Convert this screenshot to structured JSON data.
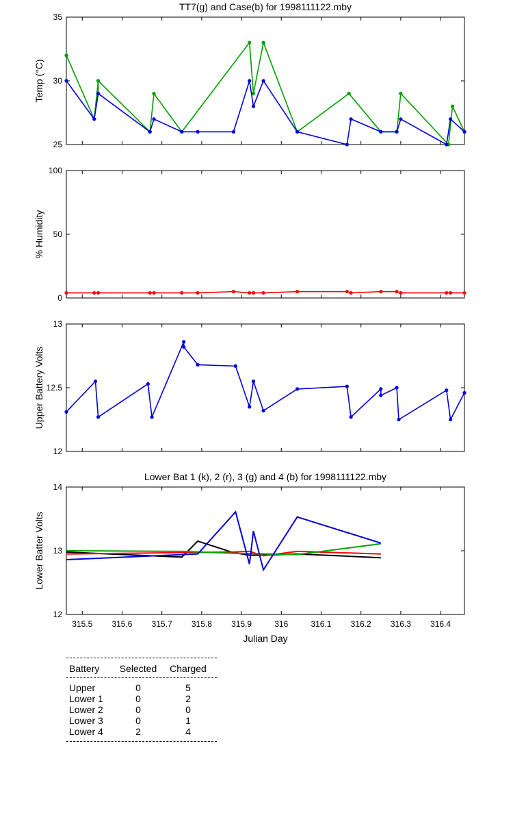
{
  "chart_data": [
    {
      "type": "line",
      "title": "TT7(g) and Case(b) for 1998111122.mby",
      "ylabel": "Temp  (°C)",
      "xlim": [
        315.46,
        316.46
      ],
      "ylim": [
        25,
        35
      ],
      "yticks": [
        25,
        30,
        35
      ],
      "series": [
        {
          "color": "#00a000",
          "x": [
            315.46,
            315.53,
            315.54,
            315.54,
            315.53,
            315.54,
            315.67,
            315.68,
            315.75,
            315.92,
            315.93,
            315.955,
            316.04,
            316.17,
            316.25,
            316.29,
            316.3,
            316.42,
            316.43,
            316.46
          ],
          "y": [
            32,
            27,
            30,
            29,
            27,
            30,
            26,
            29,
            26,
            33,
            29,
            33,
            26,
            29,
            26,
            26,
            29,
            25,
            28,
            26
          ]
        },
        {
          "color": "#0000e0",
          "x": [
            315.46,
            315.53,
            315.54,
            315.67,
            315.68,
            315.75,
            315.79,
            315.88,
            315.92,
            315.93,
            315.955,
            316.04,
            316.165,
            316.175,
            316.25,
            316.29,
            316.3,
            316.415,
            316.425,
            316.46
          ],
          "y": [
            30,
            27,
            29,
            26,
            27,
            26,
            26,
            26,
            30,
            28,
            30,
            26,
            25,
            27,
            26,
            26,
            27,
            25,
            27,
            26
          ]
        }
      ]
    },
    {
      "type": "line",
      "title": "",
      "ylabel": "% Humidity",
      "xlim": [
        315.46,
        316.46
      ],
      "ylim": [
        0,
        100
      ],
      "yticks": [
        0,
        50,
        100
      ],
      "series": [
        {
          "color": "#ff0000",
          "x": [
            315.46,
            315.53,
            315.54,
            315.67,
            315.68,
            315.75,
            315.79,
            315.88,
            315.92,
            315.93,
            315.955,
            316.04,
            316.165,
            316.175,
            316.25,
            316.29,
            316.3,
            316.415,
            316.425,
            316.46
          ],
          "y": [
            4,
            4,
            4,
            4,
            4,
            4,
            4,
            5,
            4,
            4,
            4,
            5,
            5,
            4,
            5,
            5,
            4,
            4,
            4,
            4
          ]
        }
      ]
    },
    {
      "type": "line",
      "title": "",
      "ylabel": "Upper Battery Volts",
      "xlim": [
        315.46,
        316.46
      ],
      "ylim": [
        12,
        13
      ],
      "yticks": [
        12,
        12.5,
        13
      ],
      "series": [
        {
          "color": "#0000e0",
          "x": [
            315.46,
            315.533,
            315.54,
            315.665,
            315.675,
            315.755,
            315.755,
            315.79,
            315.885,
            315.92,
            315.93,
            315.955,
            316.04,
            316.165,
            316.175,
            316.25,
            316.25,
            316.29,
            316.295,
            316.415,
            316.425,
            316.46
          ],
          "y": [
            12.31,
            12.55,
            12.27,
            12.53,
            12.27,
            12.86,
            12.82,
            12.68,
            12.67,
            12.35,
            12.55,
            12.32,
            12.49,
            12.51,
            12.27,
            12.49,
            12.44,
            12.5,
            12.25,
            12.48,
            12.25,
            12.46
          ]
        }
      ]
    },
    {
      "type": "line",
      "title": "Lower Bat 1 (k), 2 (r), 3 (g) and 4 (b) for 1998111122.mby",
      "ylabel": "Lower Batter Volts",
      "xlabel": "Julian Day",
      "xlim": [
        315.46,
        316.46
      ],
      "ylim": [
        12,
        14
      ],
      "yticks": [
        12,
        13,
        14
      ],
      "xticks": [
        315.5,
        315.6,
        315.7,
        315.8,
        315.9,
        316,
        316.1,
        316.2,
        316.3,
        316.4
      ],
      "series": [
        {
          "color": "#000000",
          "x": [
            315.46,
            315.75,
            315.79,
            315.88,
            315.92,
            315.955,
            316.04,
            316.25
          ],
          "y": [
            12.98,
            12.9,
            13.15,
            12.97,
            12.93,
            12.93,
            12.95,
            12.89
          ]
        },
        {
          "color": "#ff0000",
          "x": [
            315.46,
            315.75,
            315.88,
            315.92,
            315.955,
            316.04,
            316.25
          ],
          "y": [
            12.95,
            12.97,
            12.98,
            12.99,
            12.92,
            12.99,
            12.95
          ]
        },
        {
          "color": "#00a000",
          "x": [
            315.46,
            315.75,
            315.88,
            316.04,
            316.25
          ],
          "y": [
            13.0,
            12.99,
            12.96,
            12.94,
            13.11
          ]
        },
        {
          "color": "#0000e0",
          "x": [
            315.46,
            315.79,
            315.885,
            315.92,
            315.93,
            315.955,
            316.04,
            316.25
          ],
          "y": [
            12.86,
            12.95,
            13.61,
            12.79,
            13.31,
            12.7,
            13.53,
            13.12
          ]
        }
      ]
    }
  ],
  "battery_table": {
    "headers": [
      "Battery",
      "Selected",
      "Charged"
    ],
    "rows": [
      [
        "Upper",
        "0",
        "5"
      ],
      [
        "Lower 1",
        "0",
        "2"
      ],
      [
        "Lower 2",
        "0",
        "0"
      ],
      [
        "Lower 3",
        "0",
        "1"
      ],
      [
        "Lower 4",
        "2",
        "4"
      ]
    ]
  }
}
